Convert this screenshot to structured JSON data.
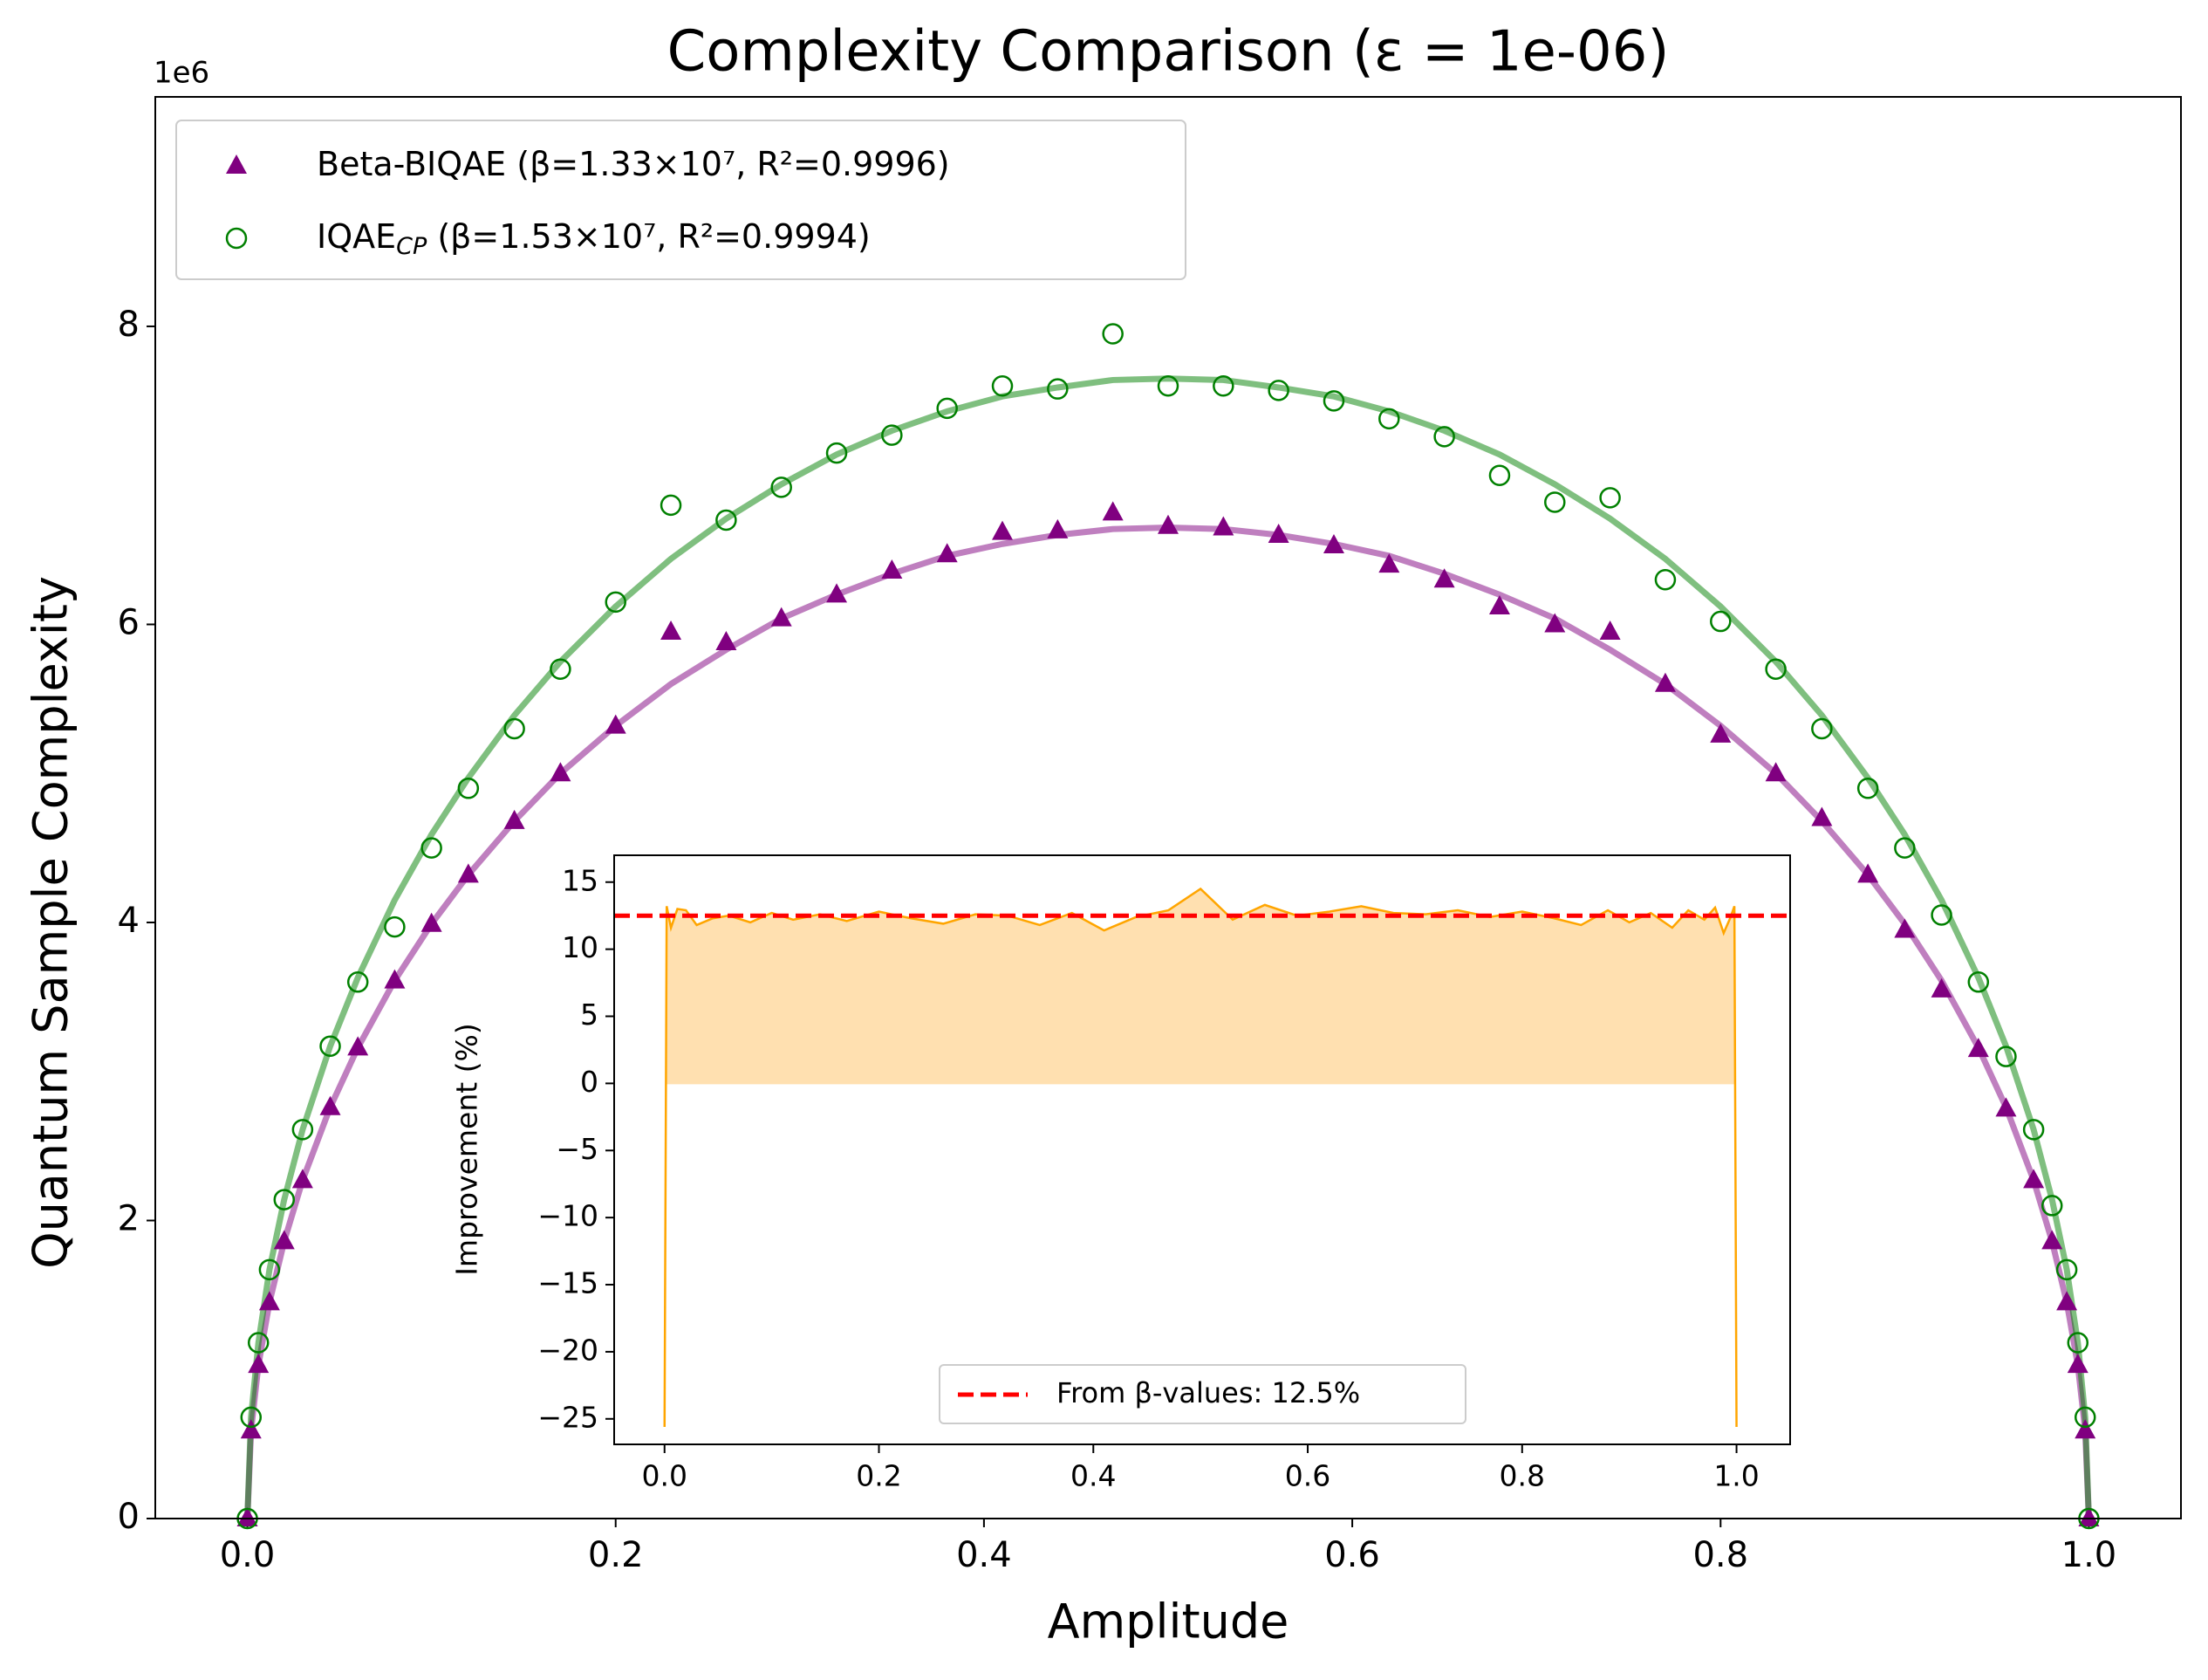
{
  "chart_data": [
    {
      "type": "scatter",
      "title": "Complexity Comparison (ε = 1e-06)",
      "xlabel": "Amplitude",
      "ylabel": "Quantum Sample Complexity",
      "y_offset_label": "1e6",
      "xlim": [
        -0.05,
        1.05
      ],
      "ylim": [
        0,
        9.54
      ],
      "xticks": [
        {
          "value": 0,
          "label": "0.0"
        },
        {
          "value": 0.2,
          "label": "0.2"
        },
        {
          "value": 0.4,
          "label": "0.4"
        },
        {
          "value": 0.6,
          "label": "0.6"
        },
        {
          "value": 0.8,
          "label": "0.8"
        },
        {
          "value": 1,
          "label": "1.0"
        }
      ],
      "yticks": [
        0,
        2,
        4,
        6,
        8
      ],
      "legend": "upper left",
      "x": [
        0,
        0.002,
        0.006,
        0.012,
        0.02,
        0.03,
        0.045,
        0.06,
        0.08,
        0.1,
        0.12,
        0.145,
        0.17,
        0.2,
        0.23,
        0.26,
        0.29,
        0.32,
        0.35,
        0.38,
        0.41,
        0.44,
        0.47,
        0.5,
        0.53,
        0.56,
        0.59,
        0.62,
        0.65,
        0.68,
        0.71,
        0.74,
        0.77,
        0.8,
        0.83,
        0.855,
        0.88,
        0.9,
        0.92,
        0.94,
        0.955,
        0.97,
        0.98,
        0.988,
        0.994,
        0.998,
        1
      ],
      "series": [
        {
          "name": "Beta-BIQAE (β=1.33×10⁷, R²=0.9996)",
          "marker": "triangle",
          "color": "#800080",
          "values": [
            0,
            0.59,
            1.03,
            1.45,
            1.86,
            2.27,
            2.76,
            3.16,
            3.61,
            3.99,
            4.32,
            4.68,
            5.0,
            5.32,
            5.95,
            5.88,
            6.04,
            6.2,
            6.36,
            6.47,
            6.62,
            6.63,
            6.75,
            6.66,
            6.65,
            6.6,
            6.53,
            6.4,
            6.3,
            6.12,
            6.0,
            5.95,
            5.6,
            5.26,
            5.0,
            4.7,
            4.32,
            3.95,
            3.55,
            3.15,
            2.75,
            2.27,
            1.86,
            1.45,
            1.03,
            0.59,
            0
          ],
          "fit_values": [
            0,
            0.59,
            1.03,
            1.45,
            1.86,
            2.27,
            2.76,
            3.16,
            3.61,
            3.99,
            4.32,
            4.68,
            5.0,
            5.32,
            5.6,
            5.83,
            6.04,
            6.2,
            6.34,
            6.46,
            6.54,
            6.6,
            6.64,
            6.65,
            6.64,
            6.6,
            6.54,
            6.46,
            6.34,
            6.2,
            6.04,
            5.83,
            5.6,
            5.32,
            5.0,
            4.68,
            4.32,
            3.99,
            3.61,
            3.16,
            2.76,
            2.27,
            1.86,
            1.45,
            1.03,
            0.59,
            0
          ]
        },
        {
          "name": "IQAE",
          "name_sub": "CP",
          "name_rest": " (β=1.53×10⁷, R²=0.9994)",
          "marker": "open-circle",
          "color": "#008000",
          "values": [
            0,
            0.68,
            1.18,
            1.67,
            2.14,
            2.61,
            3.17,
            3.6,
            3.97,
            4.5,
            4.9,
            5.3,
            5.7,
            6.15,
            6.8,
            6.7,
            6.92,
            7.15,
            7.27,
            7.45,
            7.6,
            7.58,
            7.95,
            7.6,
            7.6,
            7.57,
            7.5,
            7.38,
            7.26,
            7.0,
            6.82,
            6.85,
            6.3,
            6.02,
            5.7,
            5.3,
            4.9,
            4.5,
            4.05,
            3.6,
            3.1,
            2.61,
            2.1,
            1.67,
            1.18,
            0.68,
            0
          ],
          "fit_values": [
            0,
            0.68,
            1.18,
            1.67,
            2.14,
            2.61,
            3.17,
            3.63,
            4.15,
            4.59,
            4.97,
            5.39,
            5.75,
            6.12,
            6.44,
            6.71,
            6.94,
            7.14,
            7.3,
            7.43,
            7.53,
            7.59,
            7.64,
            7.65,
            7.64,
            7.59,
            7.53,
            7.43,
            7.3,
            7.14,
            6.94,
            6.71,
            6.44,
            6.12,
            5.75,
            5.39,
            4.97,
            4.59,
            4.15,
            3.63,
            3.17,
            2.61,
            2.14,
            1.67,
            1.18,
            0.68,
            0
          ]
        }
      ]
    },
    {
      "type": "line",
      "ylabel": "Improvement (%)",
      "xlim": [
        -0.047,
        1.05
      ],
      "ylim": [
        -26.9,
        17.0
      ],
      "xticks": [
        {
          "value": 0,
          "label": "0.0"
        },
        {
          "value": 0.2,
          "label": "0.2"
        },
        {
          "value": 0.4,
          "label": "0.4"
        },
        {
          "value": 0.6,
          "label": "0.6"
        },
        {
          "value": 0.8,
          "label": "0.8"
        },
        {
          "value": 1,
          "label": "1.0"
        }
      ],
      "yticks": [
        15,
        10,
        5,
        0,
        {
          "value": -5,
          "label": "−5"
        },
        {
          "value": -10,
          "label": "−10"
        },
        {
          "value": -15,
          "label": "−15"
        },
        {
          "value": -20,
          "label": "−20"
        },
        {
          "value": -25,
          "label": "−25"
        }
      ],
      "x": [
        0,
        0.002,
        0.006,
        0.012,
        0.02,
        0.03,
        0.045,
        0.06,
        0.08,
        0.1,
        0.12,
        0.145,
        0.17,
        0.2,
        0.23,
        0.26,
        0.29,
        0.32,
        0.35,
        0.38,
        0.41,
        0.44,
        0.47,
        0.5,
        0.53,
        0.56,
        0.59,
        0.62,
        0.65,
        0.68,
        0.71,
        0.74,
        0.77,
        0.8,
        0.83,
        0.855,
        0.88,
        0.9,
        0.92,
        0.94,
        0.955,
        0.97,
        0.98,
        0.988,
        0.994,
        0.998,
        1
      ],
      "values": [
        -25.6,
        13.2,
        11.6,
        13.0,
        12.9,
        11.8,
        12.3,
        12.5,
        12.0,
        12.7,
        12.2,
        12.6,
        12.1,
        12.8,
        12.3,
        11.9,
        12.6,
        12.5,
        11.8,
        12.7,
        11.4,
        12.4,
        12.9,
        14.5,
        12.2,
        13.3,
        12.5,
        12.8,
        13.2,
        12.7,
        12.6,
        12.9,
        12.4,
        12.8,
        12.3,
        11.8,
        12.9,
        12.0,
        12.7,
        11.6,
        12.9,
        12.2,
        13.1,
        11.2,
        12.3,
        13.2,
        -25.6
      ],
      "color": "#ffa500",
      "fill_color": "#ffe0b0",
      "reference": 12.5,
      "reference_label": "From β-values: 12.5%",
      "reference_color": "#ff0000",
      "legend": "lower center"
    }
  ]
}
